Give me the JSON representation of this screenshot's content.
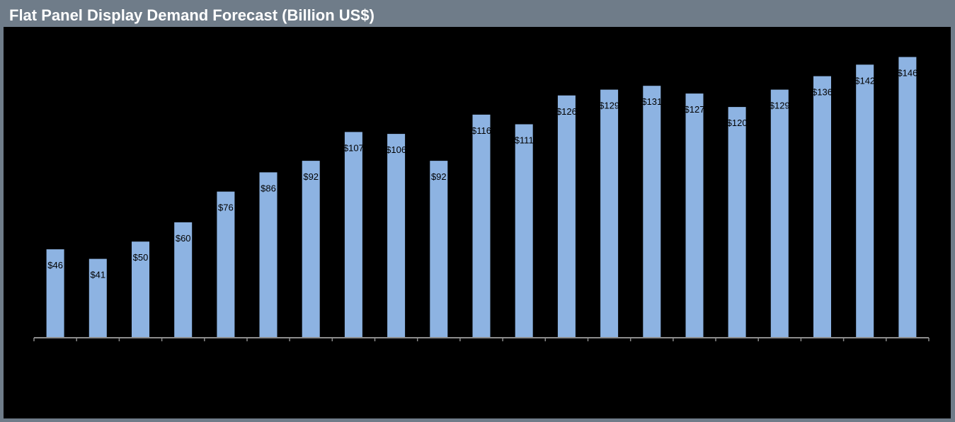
{
  "header": {
    "title": "Flat Panel Display Demand Forecast (Billion US$)"
  },
  "colors": {
    "frame": "#6f7c89",
    "plot_background": "#000000",
    "bar": "#8db3e2",
    "axis": "#8c8c8c",
    "title_text": "#ffffff",
    "label_text": "#000000"
  },
  "chart_data": {
    "type": "bar",
    "title": "Flat Panel Display Demand Forecast (Billion US$)",
    "xlabel": "",
    "ylabel": "",
    "ylim": [
      0,
      160
    ],
    "grid": false,
    "legend": "none",
    "categories": [
      "",
      "",
      "",
      "",
      "",
      "",
      "",
      "",
      "",
      "",
      "",
      "",
      "",
      "",
      "",
      "",
      "",
      "",
      "",
      "",
      ""
    ],
    "values": [
      46,
      41,
      50,
      60,
      76,
      86,
      92,
      107,
      106,
      92,
      116,
      111,
      126,
      129,
      131,
      127,
      120,
      129,
      136,
      142,
      146
    ],
    "data_labels": [
      "$46",
      "$41",
      "$50",
      "$60",
      "$76",
      "$86",
      "$92",
      "$107",
      "$106",
      "$92",
      "$116",
      "$111",
      "$126",
      "$129",
      "$131",
      "$127",
      "$120",
      "$129",
      "$136",
      "$142",
      "$146"
    ]
  }
}
